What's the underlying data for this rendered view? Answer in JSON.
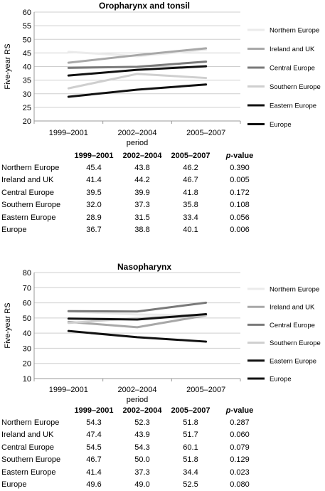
{
  "chart_data": [
    {
      "type": "line",
      "title": "Oropharynx and tonsil",
      "xlabel": "period",
      "ylabel": "Five-year RS",
      "ylim": [
        20,
        60
      ],
      "yticks": [
        "20",
        "25",
        "30",
        "35",
        "40",
        "45",
        "50",
        "55",
        "60"
      ],
      "categories": [
        "1999–2001",
        "2002–2004",
        "2005–2007"
      ],
      "series": [
        {
          "name": "Northern Europe",
          "values": [
            45.4,
            43.8,
            46.2
          ],
          "color": "#ebebeb",
          "width": 3
        },
        {
          "name": "Ireland and UK",
          "values": [
            41.4,
            44.2,
            46.7
          ],
          "color": "#a8a8a8",
          "width": 3
        },
        {
          "name": "Central Europe",
          "values": [
            39.5,
            39.9,
            41.8
          ],
          "color": "#7a7a7a",
          "width": 3
        },
        {
          "name": "Southern Europe",
          "values": [
            32.0,
            37.3,
            35.8
          ],
          "color": "#cfcfcf",
          "width": 3
        },
        {
          "name": "Eastern Europe",
          "values": [
            28.9,
            31.5,
            33.4
          ],
          "color": "#111111",
          "width": 3
        },
        {
          "name": "Europe",
          "values": [
            36.7,
            38.8,
            40.1
          ],
          "color": "#111111",
          "width": 3
        }
      ],
      "grid": true,
      "legend": "right",
      "table": {
        "headers": [
          "1999–2001",
          "2002–2004",
          "2005–2007",
          "p-value"
        ],
        "rows": [
          {
            "name": "Northern Europe",
            "values": [
              "45.4",
              "43.8",
              "46.2"
            ],
            "p": "0.390"
          },
          {
            "name": "Ireland and UK",
            "values": [
              "41.4",
              "44.2",
              "46.7"
            ],
            "p": "0.005"
          },
          {
            "name": "Central Europe",
            "values": [
              "39.5",
              "39.9",
              "41.8"
            ],
            "p": "0.172"
          },
          {
            "name": "Southern Europe",
            "values": [
              "32.0",
              "37.3",
              "35.8"
            ],
            "p": "0.108"
          },
          {
            "name": "Eastern Europe",
            "values": [
              "28.9",
              "31.5",
              "33.4"
            ],
            "p": "0.056"
          },
          {
            "name": "Europe",
            "values": [
              "36.7",
              "38.8",
              "40.1"
            ],
            "p": "0.006"
          }
        ]
      }
    },
    {
      "type": "line",
      "title": "Nasopharynx",
      "xlabel": "period",
      "ylabel": "Five-year RS",
      "ylim": [
        10,
        80
      ],
      "yticks": [
        "10",
        "20",
        "30",
        "40",
        "50",
        "60",
        "70",
        "80"
      ],
      "categories": [
        "1999–2001",
        "2002–2004",
        "2005–2007"
      ],
      "series": [
        {
          "name": "Northern Europe",
          "values": [
            54.3,
            52.3,
            51.8
          ],
          "color": "#ebebeb",
          "width": 3
        },
        {
          "name": "Ireland and UK",
          "values": [
            47.4,
            43.9,
            51.7
          ],
          "color": "#a8a8a8",
          "width": 3
        },
        {
          "name": "Central Europe",
          "values": [
            54.5,
            54.3,
            60.1
          ],
          "color": "#7a7a7a",
          "width": 3
        },
        {
          "name": "Southern Europe",
          "values": [
            46.7,
            50.0,
            51.8
          ],
          "color": "#cfcfcf",
          "width": 3
        },
        {
          "name": "Eastern Europe",
          "values": [
            41.4,
            37.3,
            34.4
          ],
          "color": "#111111",
          "width": 3
        },
        {
          "name": "Europe",
          "values": [
            49.6,
            49.0,
            52.5
          ],
          "color": "#111111",
          "width": 3
        }
      ],
      "grid": true,
      "legend": "right",
      "table": {
        "headers": [
          "1999–2001",
          "2002–2004",
          "2005–2007",
          "p-value"
        ],
        "rows": [
          {
            "name": "Northern Europe",
            "values": [
              "54.3",
              "52.3",
              "51.8"
            ],
            "p": "0.287"
          },
          {
            "name": "Ireland and UK",
            "values": [
              "47.4",
              "43.9",
              "51.7"
            ],
            "p": "0.060"
          },
          {
            "name": "Central Europe",
            "values": [
              "54.5",
              "54.3",
              "60.1"
            ],
            "p": "0.079"
          },
          {
            "name": "Southern Europe",
            "values": [
              "46.7",
              "50.0",
              "51.8"
            ],
            "p": "0.129"
          },
          {
            "name": "Eastern Europe",
            "values": [
              "41.4",
              "37.3",
              "34.4"
            ],
            "p": "0.023"
          },
          {
            "name": "Europe",
            "values": [
              "49.6",
              "49.0",
              "52.5"
            ],
            "p": "0.080"
          }
        ]
      }
    }
  ]
}
